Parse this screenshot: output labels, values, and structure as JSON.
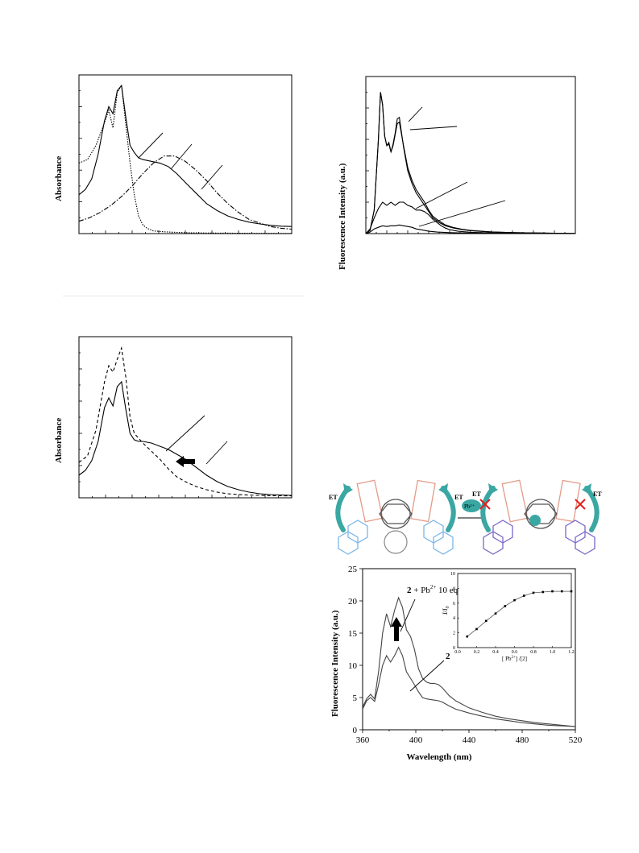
{
  "chart_data": [
    {
      "id": "abs-top",
      "type": "line",
      "ylabel": "Absorbance",
      "xlabel": "",
      "series": [
        {
          "style": "solid",
          "x": [
            0,
            3,
            6,
            9,
            12,
            14,
            16,
            18,
            20,
            22,
            24,
            26,
            28,
            30,
            34,
            38,
            42,
            46,
            50,
            55,
            60,
            65,
            70,
            75,
            80,
            85,
            90,
            95,
            100
          ],
          "y": [
            0.22,
            0.25,
            0.31,
            0.45,
            0.64,
            0.72,
            0.68,
            0.81,
            0.84,
            0.66,
            0.5,
            0.46,
            0.43,
            0.42,
            0.41,
            0.4,
            0.38,
            0.34,
            0.29,
            0.23,
            0.17,
            0.13,
            0.1,
            0.08,
            0.065,
            0.055,
            0.047,
            0.042,
            0.04
          ]
        },
        {
          "style": "dotted",
          "x": [
            0,
            4,
            8,
            12,
            14,
            16,
            18,
            20,
            22,
            24,
            26,
            28,
            30,
            32,
            35,
            40,
            50,
            60,
            80,
            100
          ],
          "y": [
            0.4,
            0.42,
            0.5,
            0.63,
            0.7,
            0.6,
            0.8,
            0.84,
            0.62,
            0.4,
            0.22,
            0.1,
            0.05,
            0.03,
            0.015,
            0.01,
            0.005,
            0.003,
            0.002,
            0.001
          ]
        },
        {
          "style": "dashdot",
          "x": [
            0,
            5,
            10,
            15,
            20,
            25,
            30,
            35,
            40,
            45,
            50,
            55,
            60,
            65,
            70,
            75,
            80,
            85,
            90,
            95,
            100
          ],
          "y": [
            0.07,
            0.09,
            0.12,
            0.16,
            0.21,
            0.27,
            0.34,
            0.4,
            0.44,
            0.44,
            0.41,
            0.36,
            0.3,
            0.23,
            0.17,
            0.12,
            0.08,
            0.06,
            0.04,
            0.03,
            0.025
          ]
        }
      ]
    },
    {
      "id": "fl-top",
      "type": "line",
      "ylabel": "Fluorescence Intensity (a.u.)",
      "xlabel": "",
      "series": [
        {
          "style": "solid",
          "x": [
            0,
            2,
            4,
            6,
            7,
            8,
            9,
            10,
            11,
            12,
            13,
            14,
            15,
            16,
            18,
            20,
            22,
            24,
            26,
            28,
            30,
            32,
            35,
            38,
            42,
            46,
            50,
            60,
            70,
            80,
            90,
            100
          ],
          "y": [
            0,
            0.02,
            0.15,
            0.6,
            0.9,
            0.82,
            0.62,
            0.56,
            0.58,
            0.52,
            0.57,
            0.64,
            0.73,
            0.74,
            0.55,
            0.4,
            0.32,
            0.26,
            0.22,
            0.18,
            0.14,
            0.1,
            0.07,
            0.05,
            0.035,
            0.025,
            0.018,
            0.01,
            0.006,
            0.004,
            0.002,
            0.001
          ]
        },
        {
          "style": "solid",
          "x": [
            0,
            2,
            4,
            6,
            7,
            8,
            9,
            10,
            11,
            12,
            13,
            14,
            15,
            16,
            18,
            20,
            22,
            24,
            26,
            28,
            30,
            32,
            35,
            38,
            42,
            46,
            50,
            60,
            70,
            80,
            90,
            100
          ],
          "y": [
            0,
            0.02,
            0.15,
            0.6,
            0.9,
            0.82,
            0.62,
            0.56,
            0.57,
            0.52,
            0.56,
            0.63,
            0.7,
            0.71,
            0.56,
            0.42,
            0.34,
            0.28,
            0.24,
            0.2,
            0.15,
            0.11,
            0.08,
            0.055,
            0.038,
            0.027,
            0.02,
            0.011,
            0.006,
            0.004,
            0.002,
            0.001
          ]
        },
        {
          "style": "solid",
          "x": [
            0,
            2,
            4,
            6,
            8,
            10,
            12,
            14,
            16,
            18,
            20,
            22,
            24,
            26,
            28,
            30,
            32,
            34,
            36,
            38,
            40,
            44,
            50,
            60,
            70,
            80,
            100
          ],
          "y": [
            0,
            0.03,
            0.1,
            0.16,
            0.2,
            0.18,
            0.2,
            0.18,
            0.2,
            0.2,
            0.18,
            0.17,
            0.15,
            0.15,
            0.14,
            0.12,
            0.09,
            0.07,
            0.05,
            0.035,
            0.025,
            0.015,
            0.008,
            0.004,
            0.002,
            0.001,
            0
          ]
        },
        {
          "style": "solid",
          "x": [
            0,
            2,
            4,
            6,
            8,
            10,
            12,
            14,
            16,
            18,
            20,
            22,
            24,
            26,
            28,
            30,
            34,
            40,
            50,
            60,
            80,
            100
          ],
          "y": [
            0,
            0.01,
            0.03,
            0.04,
            0.05,
            0.045,
            0.05,
            0.05,
            0.055,
            0.05,
            0.045,
            0.04,
            0.03,
            0.025,
            0.02,
            0.015,
            0.01,
            0.006,
            0.003,
            0.002,
            0.001,
            0
          ]
        }
      ]
    },
    {
      "id": "abs-bottom",
      "type": "line",
      "ylabel": "Absorbance",
      "xlabel": "",
      "series": [
        {
          "style": "dashed",
          "x": [
            0,
            4,
            8,
            12,
            14,
            16,
            18,
            20,
            22,
            24,
            26,
            28,
            30,
            34,
            38,
            42,
            46,
            50,
            55,
            60,
            65,
            70,
            75,
            80,
            85,
            90,
            100
          ],
          "y": [
            0.22,
            0.26,
            0.42,
            0.72,
            0.82,
            0.78,
            0.86,
            0.93,
            0.75,
            0.5,
            0.4,
            0.37,
            0.34,
            0.29,
            0.24,
            0.18,
            0.13,
            0.1,
            0.07,
            0.05,
            0.035,
            0.025,
            0.02,
            0.017,
            0.015,
            0.013,
            0.012
          ]
        },
        {
          "style": "solid",
          "x": [
            0,
            3,
            6,
            9,
            12,
            14,
            16,
            18,
            20,
            22,
            24,
            26,
            28,
            30,
            34,
            38,
            42,
            46,
            50,
            55,
            60,
            65,
            70,
            75,
            80,
            85,
            90,
            100
          ],
          "y": [
            0.14,
            0.17,
            0.23,
            0.35,
            0.56,
            0.62,
            0.57,
            0.69,
            0.72,
            0.55,
            0.4,
            0.36,
            0.35,
            0.35,
            0.34,
            0.32,
            0.3,
            0.27,
            0.24,
            0.19,
            0.14,
            0.1,
            0.07,
            0.05,
            0.035,
            0.025,
            0.02,
            0.015
          ]
        }
      ]
    },
    {
      "id": "fl-main",
      "type": "line",
      "xlabel": "Wavelength (nm)",
      "ylabel": "Fluorescence Intensity (a.u.)",
      "xlim": [
        360,
        520
      ],
      "ylim": [
        0,
        25
      ],
      "xticks": [
        360,
        400,
        440,
        480,
        520
      ],
      "yticks": [
        0,
        5,
        10,
        15,
        20,
        25
      ],
      "annotations": [
        {
          "label_num": "2",
          "label_rest": " + Pb",
          "sup": "2+",
          "suffix": " 10 eq"
        },
        {
          "label_num": "2"
        }
      ],
      "series": [
        {
          "name": "2 + Pb2+ 10 eq",
          "x": [
            360,
            363,
            366,
            369,
            372,
            375,
            378,
            381,
            384,
            387,
            390,
            393,
            396,
            399,
            402,
            405,
            408,
            411,
            414,
            417,
            420,
            425,
            430,
            440,
            450,
            460,
            470,
            480,
            490,
            500,
            510,
            520
          ],
          "y": [
            3.5,
            4.8,
            5.5,
            4.8,
            9.0,
            15.0,
            18.0,
            16.0,
            18.5,
            20.5,
            19.0,
            15.5,
            14.5,
            12.5,
            9.5,
            8.0,
            7.4,
            7.2,
            7.2,
            7.0,
            6.5,
            5.3,
            4.5,
            3.4,
            2.7,
            2.1,
            1.7,
            1.4,
            1.1,
            0.9,
            0.7,
            0.5
          ]
        },
        {
          "name": "2",
          "x": [
            360,
            363,
            366,
            369,
            372,
            375,
            378,
            381,
            384,
            387,
            390,
            393,
            396,
            399,
            402,
            405,
            408,
            411,
            414,
            417,
            420,
            425,
            430,
            440,
            450,
            460,
            470,
            480,
            490,
            500,
            510,
            520
          ],
          "y": [
            3.2,
            4.5,
            5.0,
            4.4,
            7.0,
            10.0,
            11.5,
            10.5,
            11.5,
            12.8,
            11.5,
            9.0,
            8.0,
            7.0,
            5.9,
            5.0,
            4.8,
            4.7,
            4.6,
            4.5,
            4.3,
            3.7,
            3.2,
            2.6,
            2.1,
            1.7,
            1.4,
            1.1,
            0.9,
            0.7,
            0.6,
            0.5
          ]
        }
      ]
    },
    {
      "id": "fl-inset",
      "type": "scatter",
      "xlabel_pre": "[ Pb",
      "xlabel_sup": "2+",
      "xlabel_post": "] /[2]",
      "ylabel_main": "I/I",
      "ylabel_sub": "0",
      "xlim": [
        0.0,
        1.2
      ],
      "ylim": [
        0,
        10
      ],
      "xticks": [
        "0.0",
        "0.2",
        "0.4",
        "0.6",
        "0.8",
        "1.0",
        "1.2"
      ],
      "yticks": [
        "0",
        "2",
        "4",
        "6",
        "8",
        "10"
      ],
      "x": [
        0.1,
        0.2,
        0.3,
        0.4,
        0.5,
        0.6,
        0.7,
        0.8,
        0.9,
        1.0,
        1.1,
        1.2
      ],
      "y": [
        1.5,
        2.5,
        3.6,
        4.6,
        5.6,
        6.4,
        7.0,
        7.4,
        7.5,
        7.6,
        7.6,
        7.6
      ]
    }
  ],
  "scheme": {
    "left_et": "ET",
    "right_et": "ET",
    "left_et2": "ET",
    "right_et2": "ET",
    "pb_label": "Pb²⁺"
  }
}
